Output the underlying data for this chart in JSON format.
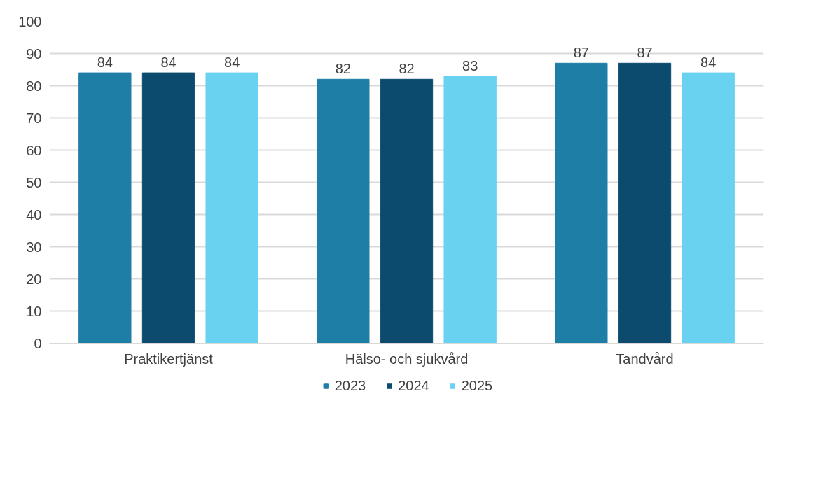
{
  "chart_data": {
    "type": "bar",
    "categories": [
      "Praktikertjänst",
      "Hälso- och sjukvård",
      "Tandvård"
    ],
    "series": [
      {
        "name": "2023",
        "color": "#1f7ea6",
        "values": [
          84,
          82,
          87
        ]
      },
      {
        "name": "2024",
        "color": "#0c4a6e",
        "values": [
          84,
          82,
          87
        ]
      },
      {
        "name": "2025",
        "color": "#68d2f0",
        "values": [
          84,
          83,
          84
        ]
      }
    ],
    "ylim": [
      0,
      100
    ],
    "yticks": [
      0,
      10,
      20,
      30,
      40,
      50,
      60,
      70,
      80,
      90,
      100
    ],
    "grid": "y",
    "legend": "bottom",
    "data_labels": true
  }
}
